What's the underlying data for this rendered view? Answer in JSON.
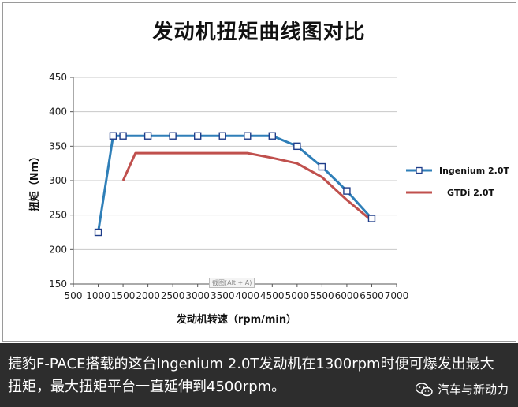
{
  "title": "发动机扭矩曲线图对比",
  "watermark": "截图(Alt + A)",
  "caption": "捷豹F-PACE搭载的这台Ingenium 2.0T发动机在1300rpm时便可爆发出最大扭矩，最大扭矩平台一直延伸到4500rpm。",
  "brand": {
    "name": "汽车与新动力",
    "icon": "wechat-icon"
  },
  "chart_data": {
    "type": "line",
    "title": "发动机扭矩曲线图对比",
    "xlabel": "发动机转速（rpm/min）",
    "ylabel": "扭矩（Nm）",
    "xlim": [
      500,
      7000
    ],
    "ylim": [
      150,
      450
    ],
    "xticks": [
      500,
      1000,
      1500,
      2000,
      2500,
      3000,
      3500,
      4000,
      4500,
      5000,
      5500,
      6000,
      6500,
      7000
    ],
    "yticks": [
      150,
      200,
      250,
      300,
      350,
      400,
      450
    ],
    "grid": "horizontal",
    "legend": "right",
    "series": [
      {
        "name": "Ingenium 2.0T",
        "color": "#2f7fb8",
        "marker": "square",
        "x": [
          1000,
          1300,
          1500,
          2000,
          2500,
          3000,
          3500,
          4000,
          4500,
          5000,
          5500,
          6000,
          6500
        ],
        "y": [
          225,
          365,
          365,
          365,
          365,
          365,
          365,
          365,
          365,
          350,
          320,
          285,
          245
        ]
      },
      {
        "name": "GTDi 2.0T",
        "color": "#c0504d",
        "marker": "none",
        "x": [
          1500,
          1750,
          2000,
          2500,
          3000,
          3500,
          4000,
          4500,
          5000,
          5500,
          6000,
          6500
        ],
        "y": [
          300,
          340,
          340,
          340,
          340,
          340,
          340,
          333,
          325,
          305,
          272,
          242
        ]
      }
    ]
  }
}
